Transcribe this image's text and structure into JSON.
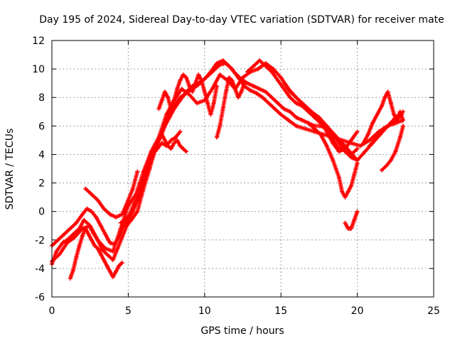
{
  "chart_data": {
    "type": "scatter",
    "title": "Day 195 of 2024, Sidereal Day-to-day VTEC variation (SDTVAR) for receiver mate",
    "xlabel": "GPS time / hours",
    "ylabel": "SDTVAR / TECUs",
    "xlim": [
      0,
      25
    ],
    "ylim": [
      -6,
      12
    ],
    "xticks": [
      "0",
      "5",
      "10",
      "15",
      "20",
      "25"
    ],
    "yticks": [
      "-6",
      "-4",
      "-2",
      "0",
      "2",
      "4",
      "6",
      "8",
      "10",
      "12"
    ],
    "grid": true,
    "marker": "+",
    "color": "#ff0000",
    "series": [
      {
        "x": [
          0.0,
          0.3,
          0.7,
          1.0,
          1.4,
          1.8,
          2.1,
          2.4,
          2.7,
          3.0,
          3.3,
          3.7,
          4.0,
          4.3,
          4.6,
          4.9,
          5.2,
          5.6,
          6.0,
          6.4,
          6.8,
          7.2,
          7.6,
          8.0,
          8.4,
          8.8,
          9.2,
          9.6,
          10.0,
          10.5,
          11.0,
          11.4,
          11.8,
          12.2,
          12.6,
          13.0,
          13.4,
          13.8,
          14.2,
          14.6,
          15.0,
          15.5,
          16.0,
          16.6,
          17.2,
          17.8,
          18.4,
          19.0,
          19.6,
          20.2,
          20.8,
          21.4,
          22.0,
          22.5,
          23.0
        ],
        "y": [
          -3.7,
          -2.8,
          -2.2,
          -2.0,
          -1.6,
          -1.2,
          -0.6,
          -0.9,
          -1.5,
          -2.0,
          -2.7,
          -3.1,
          -3.4,
          -2.6,
          -1.8,
          -1.0,
          -0.6,
          0.0,
          1.6,
          3.0,
          4.5,
          5.6,
          6.6,
          7.4,
          8.0,
          8.3,
          8.6,
          8.9,
          9.3,
          9.8,
          10.3,
          10.4,
          10.0,
          9.4,
          8.8,
          8.5,
          8.3,
          8.0,
          7.6,
          7.2,
          6.8,
          6.4,
          6.0,
          5.8,
          5.6,
          5.4,
          5.2,
          5.0,
          4.8,
          4.6,
          5.0,
          5.6,
          6.0,
          6.2,
          6.4
        ]
      },
      {
        "x": [
          0.0,
          0.4,
          0.8,
          1.2,
          1.6,
          2.0,
          2.3,
          2.6,
          2.9,
          3.2,
          3.5,
          3.8,
          4.1,
          4.4,
          4.7,
          5.0,
          5.3,
          5.6,
          5.9,
          6.2,
          6.5,
          6.8,
          7.1,
          7.4,
          7.7,
          8.0,
          8.4,
          8.8,
          9.2,
          9.6,
          10.0,
          10.4,
          10.8,
          11.2,
          11.6,
          12.0,
          12.4,
          12.8,
          13.2,
          13.6,
          14.0,
          14.4,
          14.8,
          15.2,
          15.6,
          16.0,
          16.4,
          16.8,
          17.2,
          17.6,
          18.0,
          18.4,
          18.8,
          19.2,
          19.6,
          20.0
        ],
        "y": [
          -2.4,
          -2.0,
          -1.6,
          -1.2,
          -0.8,
          -0.2,
          0.2,
          0.0,
          -0.4,
          -1.0,
          -1.6,
          -2.2,
          -2.3,
          -1.8,
          -1.0,
          -0.6,
          0.0,
          0.8,
          1.8,
          2.8,
          3.6,
          4.4,
          5.2,
          6.0,
          6.6,
          7.2,
          7.8,
          8.4,
          8.8,
          9.0,
          9.3,
          9.8,
          10.4,
          10.6,
          10.2,
          9.7,
          9.3,
          9.0,
          8.8,
          8.6,
          8.4,
          8.0,
          7.6,
          7.2,
          7.0,
          6.6,
          6.4,
          6.2,
          6.0,
          6.0,
          5.8,
          5.4,
          4.8,
          4.2,
          3.8,
          3.6
        ]
      },
      {
        "x": [
          0.0,
          0.5,
          1.0,
          1.5,
          2.0,
          2.5,
          3.0,
          3.5,
          4.0,
          4.5,
          5.0,
          5.5,
          6.0,
          6.5,
          7.0,
          7.5,
          8.0,
          8.5,
          9.0,
          9.5,
          10.0,
          10.5,
          11.0,
          11.5,
          12.0,
          12.5,
          13.0,
          13.5,
          14.0,
          14.5,
          15.0,
          15.5,
          16.0,
          16.5,
          17.0,
          17.5,
          18.0,
          18.5,
          19.0,
          19.5,
          20.0,
          20.5,
          21.0,
          21.5,
          22.0,
          22.5,
          23.0
        ],
        "y": [
          -3.5,
          -3.0,
          -2.2,
          -1.8,
          -1.2,
          -1.0,
          -2.0,
          -2.6,
          -2.8,
          -1.2,
          0.4,
          1.2,
          2.8,
          4.2,
          5.2,
          6.8,
          7.8,
          8.6,
          8.2,
          7.6,
          7.8,
          8.6,
          9.6,
          9.2,
          8.6,
          9.4,
          9.8,
          10.0,
          10.4,
          10.0,
          9.4,
          8.6,
          8.0,
          7.4,
          7.0,
          6.6,
          6.0,
          5.4,
          4.8,
          4.2,
          3.6,
          4.2,
          4.8,
          5.4,
          6.0,
          6.6,
          7.0
        ]
      },
      {
        "x": [
          1.2,
          1.4,
          1.6,
          1.8,
          2.0,
          2.2,
          2.4,
          2.6,
          2.8,
          3.0,
          3.2,
          3.4,
          3.6,
          3.8,
          4.0,
          4.2,
          4.4,
          4.6
        ],
        "y": [
          -4.7,
          -4.1,
          -3.2,
          -2.4,
          -1.7,
          -1.2,
          -1.6,
          -2.0,
          -2.4,
          -2.6,
          -3.0,
          -3.4,
          -3.8,
          -4.2,
          -4.6,
          -4.2,
          -3.8,
          -3.6
        ]
      },
      {
        "x": [
          2.2,
          2.6,
          3.0,
          3.4,
          3.8,
          4.2,
          4.6,
          5.0,
          5.3,
          5.6
        ],
        "y": [
          1.6,
          1.2,
          0.8,
          0.2,
          -0.2,
          -0.4,
          -0.2,
          0.8,
          1.6,
          2.8
        ]
      },
      {
        "x": [
          4.5,
          4.8,
          5.1,
          5.4,
          5.7,
          6.0,
          6.3,
          6.6,
          6.9,
          7.2,
          7.5,
          7.8,
          8.1,
          8.4
        ],
        "y": [
          -0.8,
          -0.6,
          -0.2,
          0.6,
          1.2,
          2.2,
          3.2,
          4.0,
          4.4,
          4.8,
          4.6,
          5.0,
          5.2,
          5.6
        ]
      },
      {
        "x": [
          7.2,
          7.4,
          7.6,
          7.8,
          8.0,
          8.2,
          8.4,
          8.6,
          8.8
        ],
        "y": [
          5.4,
          5.0,
          4.6,
          4.4,
          4.8,
          5.0,
          4.6,
          4.4,
          4.2
        ]
      },
      {
        "x": [
          7.0,
          7.2,
          7.4,
          7.6,
          7.8,
          8.0,
          8.2,
          8.4,
          8.6,
          8.8,
          9.0,
          9.2,
          9.4,
          9.6,
          9.8,
          10.0,
          10.2,
          10.4,
          10.6,
          10.8
        ],
        "y": [
          7.2,
          7.8,
          8.4,
          8.0,
          7.2,
          7.8,
          8.6,
          9.2,
          9.6,
          9.4,
          8.8,
          8.4,
          9.0,
          9.6,
          9.2,
          8.4,
          7.6,
          6.8,
          7.6,
          8.8
        ]
      },
      {
        "x": [
          10.8,
          11.0,
          11.2,
          11.4,
          11.6,
          11.8,
          12.0,
          12.2,
          12.4,
          12.6
        ],
        "y": [
          5.2,
          6.0,
          7.2,
          8.4,
          9.4,
          9.2,
          8.6,
          8.0,
          8.4,
          9.0
        ]
      },
      {
        "x": [
          12.8,
          13.2,
          13.6,
          14.0,
          14.4,
          14.8,
          15.2,
          15.6,
          16.0,
          16.4,
          16.8,
          17.2,
          17.6,
          18.0,
          18.4,
          18.8,
          19.2,
          19.6,
          20.0
        ],
        "y": [
          9.8,
          10.2,
          10.6,
          10.2,
          9.8,
          9.2,
          8.6,
          8.0,
          7.6,
          7.4,
          7.0,
          6.6,
          6.2,
          5.8,
          5.0,
          4.4,
          4.6,
          4.0,
          4.4
        ]
      },
      {
        "x": [
          15.2,
          15.6,
          16.0,
          16.4,
          16.8,
          17.2,
          17.6,
          18.0,
          18.4,
          18.8,
          19.2,
          19.6,
          20.0
        ],
        "y": [
          9.0,
          8.4,
          8.0,
          7.6,
          7.2,
          6.8,
          6.4,
          5.6,
          4.8,
          4.2,
          4.4,
          5.0,
          5.6
        ]
      },
      {
        "x": [
          16.8,
          17.2,
          17.6,
          18.0,
          18.4,
          18.8,
          19.0,
          19.2,
          19.4,
          19.6,
          19.8,
          20.0
        ],
        "y": [
          6.2,
          5.8,
          5.4,
          4.6,
          3.6,
          2.4,
          1.4,
          1.0,
          1.4,
          1.8,
          2.6,
          3.4
        ]
      },
      {
        "x": [
          19.2,
          19.4,
          19.6,
          19.8,
          20.0
        ],
        "y": [
          -0.8,
          -1.2,
          -1.2,
          -0.6,
          0.0
        ]
      },
      {
        "x": [
          20.4,
          20.7,
          21.0,
          21.3,
          21.6,
          21.8,
          22.0,
          22.2,
          22.4,
          22.6,
          22.8,
          23.0
        ],
        "y": [
          4.8,
          5.4,
          6.2,
          6.8,
          7.4,
          8.0,
          8.4,
          7.6,
          6.8,
          6.4,
          7.0,
          6.4
        ]
      },
      {
        "x": [
          21.6,
          21.9,
          22.2,
          22.5,
          22.8,
          23.0
        ],
        "y": [
          2.9,
          3.2,
          3.6,
          4.2,
          5.2,
          6.0
        ]
      },
      {
        "x": [
          20.8,
          21.1,
          21.4,
          21.7,
          22.0,
          22.3,
          22.6,
          22.9
        ],
        "y": [
          4.6,
          5.0,
          5.4,
          5.8,
          6.0,
          6.2,
          6.4,
          6.8
        ]
      }
    ]
  }
}
